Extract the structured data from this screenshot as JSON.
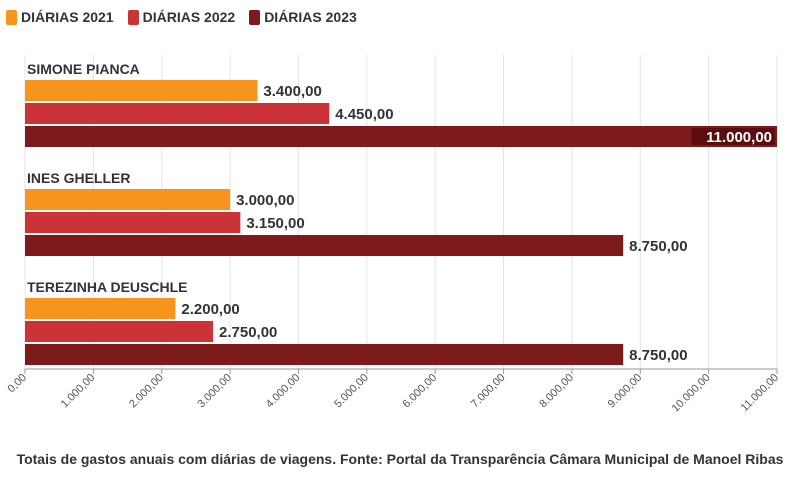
{
  "chart_data": {
    "type": "bar",
    "orientation": "horizontal",
    "categories": [
      "SIMONE PIANCA",
      "INES GHELLER",
      "TEREZINHA DEUSCHLE"
    ],
    "series": [
      {
        "name": "DIÁRIAS 2021",
        "color": "#f7941d",
        "values": [
          3400,
          3000,
          2200
        ],
        "labels": [
          "3.400,00",
          "3.000,00",
          "2.200,00"
        ]
      },
      {
        "name": "DIÁRIAS 2022",
        "color": "#cc3337",
        "values": [
          4450,
          3150,
          2750
        ],
        "labels": [
          "4.450,00",
          "3.150,00",
          "2.750,00"
        ]
      },
      {
        "name": "DIÁRIAS 2023",
        "color": "#7d1a1c",
        "values": [
          11000,
          8750,
          8750
        ],
        "labels": [
          "11.000,00",
          "8.750,00",
          "8.750,00"
        ]
      }
    ],
    "xlim": [
      0,
      11000
    ],
    "xticks": [
      0,
      1000,
      2000,
      3000,
      4000,
      5000,
      6000,
      7000,
      8000,
      9000,
      10000,
      11000
    ],
    "xtick_labels": [
      "0,00",
      "1.000,00",
      "2.000,00",
      "3.000,00",
      "4.000,00",
      "5.000,00",
      "6.000,00",
      "7.000,00",
      "8.000,00",
      "9.000,00",
      "10.000,00",
      "11.000,00"
    ],
    "grid": true,
    "legend_position": "top-left"
  },
  "caption": "Totais de gastos anuais com diárias de viagens. Fonte: Portal da Transparência Câmara Municipal de Manoel Ribas"
}
